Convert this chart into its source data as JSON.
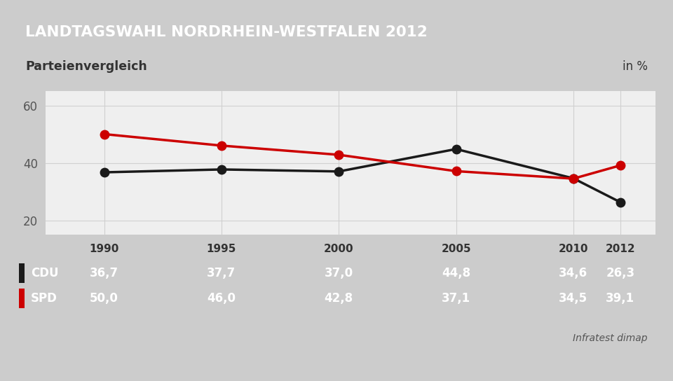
{
  "title": "LANDTAGSWAHL NORDRHEIN-WESTFALEN 2012",
  "subtitle": "Parteienvergleich",
  "unit": "in %",
  "source": "Infratest dimap",
  "years": [
    1990,
    1995,
    2000,
    2005,
    2010,
    2012
  ],
  "cdu_values": [
    36.7,
    37.7,
    37.0,
    44.8,
    34.6,
    26.3
  ],
  "spd_values": [
    50.0,
    46.0,
    42.8,
    37.1,
    34.5,
    39.1
  ],
  "cdu_color": "#1a1a1a",
  "spd_color": "#cc0000",
  "title_bg_color": "#1e3f7a",
  "title_text_color": "#ffffff",
  "subtitle_bg_color": "#ffffff",
  "table_bg_color": "#4a7eb5",
  "table_text_color": "#ffffff",
  "table_header_bg": "#f0f0f0",
  "table_header_text": "#333333",
  "ylim": [
    15,
    65
  ],
  "yticks": [
    20,
    40,
    60
  ],
  "line_width": 2.5,
  "marker_size": 9,
  "background_color": "#cccccc",
  "chart_bg_color": "#efefef",
  "grid_color": "#d0d0d0"
}
